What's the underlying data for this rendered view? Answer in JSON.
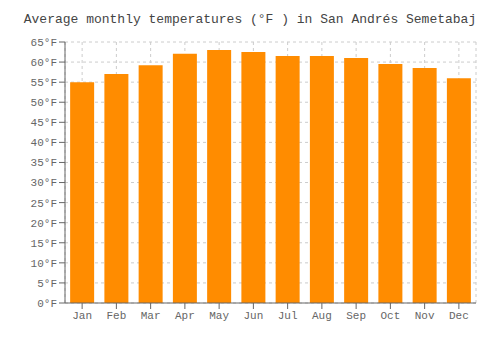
{
  "chart_data": {
    "type": "bar",
    "title": "Average monthly temperatures (°F ) in San Andrés Semetabaj",
    "categories": [
      "Jan",
      "Feb",
      "Mar",
      "Apr",
      "May",
      "Jun",
      "Jul",
      "Aug",
      "Sep",
      "Oct",
      "Nov",
      "Dec"
    ],
    "values": [
      55.0,
      57.0,
      59.2,
      62.1,
      63.0,
      62.5,
      61.5,
      61.5,
      61.0,
      59.5,
      58.5,
      56.0
    ],
    "color": "#FF8C00",
    "ylim": [
      0,
      65
    ],
    "yticks": [
      {
        "value": 0,
        "label": "0°F"
      },
      {
        "value": 5,
        "label": "5°F"
      },
      {
        "value": 10,
        "label": "10°F"
      },
      {
        "value": 15,
        "label": "15°F"
      },
      {
        "value": 20,
        "label": "20°F"
      },
      {
        "value": 25,
        "label": "25°F"
      },
      {
        "value": 30,
        "label": "30°F"
      },
      {
        "value": 35,
        "label": "35°F"
      },
      {
        "value": 40,
        "label": "40°F"
      },
      {
        "value": 45,
        "label": "45°F"
      },
      {
        "value": 50,
        "label": "50°F"
      },
      {
        "value": 55,
        "label": "55°F"
      },
      {
        "value": 60,
        "label": "60°F"
      },
      {
        "value": 65,
        "label": "65°F"
      }
    ],
    "grid": true
  }
}
